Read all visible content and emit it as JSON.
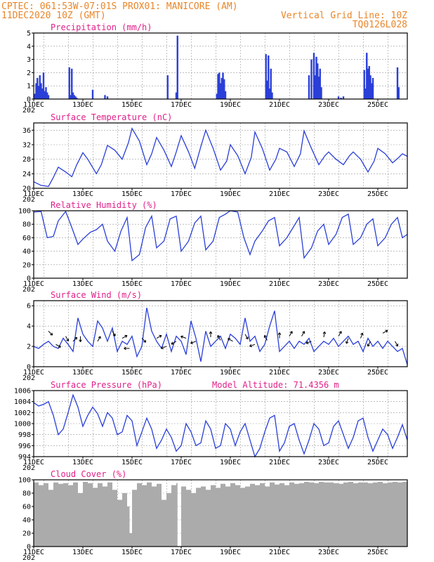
{
  "header": {
    "line1_left": "CPTEC:  061:53W-07:01S  PROX01: MANICORE (AM)",
    "line2_left": "11DEC2020 10Z (GMT)",
    "line2_right": "Vertical Grid Line: 10Z",
    "line3_right": "TQ0126L028"
  },
  "x_tick_labels": [
    "11DEC",
    "13DEC",
    "15DEC",
    "17DEC",
    "19DEC",
    "21DEC",
    "23DEC",
    "25DEC"
  ],
  "x_year_label": "202",
  "colors": {
    "series": "#2a3fd8",
    "title": "#e0208a",
    "header": "#e8862a",
    "cloud": "#ababab"
  },
  "chart_data": [
    {
      "type": "bar",
      "title": "Precipitation (mm/h)",
      "x_range_days": [
        11,
        26.2
      ],
      "ylim": [
        0,
        5
      ],
      "yticks": [
        0,
        1,
        2,
        3,
        4,
        5
      ],
      "x": [
        11.05,
        11.1,
        11.15,
        11.2,
        11.25,
        11.3,
        11.35,
        11.4,
        11.45,
        11.5,
        11.55,
        11.6,
        12.45,
        12.5,
        12.55,
        12.6,
        12.65,
        12.7,
        12.75,
        13.4,
        13.9,
        14.0,
        16.45,
        16.8,
        16.85,
        18.45,
        18.5,
        18.55,
        18.6,
        18.65,
        18.7,
        18.75,
        18.8,
        20.45,
        20.5,
        20.55,
        20.6,
        20.65,
        20.7,
        22.2,
        22.3,
        22.4,
        22.45,
        22.5,
        22.55,
        22.6,
        22.65,
        22.7,
        23.4,
        23.5,
        23.6,
        24.45,
        24.5,
        24.55,
        24.6,
        24.65,
        24.7,
        24.75,
        24.8,
        25.8,
        25.85
      ],
      "values": [
        0.4,
        1.2,
        1.6,
        1.0,
        1.8,
        1.2,
        0.8,
        2.0,
        0.6,
        0.9,
        0.5,
        0.3,
        2.4,
        0.3,
        2.3,
        0.5,
        0.3,
        0.2,
        0.1,
        0.7,
        0.3,
        0.2,
        1.8,
        0.5,
        4.8,
        0.4,
        1.9,
        2.0,
        1.2,
        1.6,
        2.0,
        1.5,
        0.6,
        3.4,
        1.4,
        3.3,
        0.8,
        2.3,
        0.5,
        1.8,
        3.0,
        3.5,
        1.8,
        3.2,
        2.7,
        1.7,
        2.3,
        0.9,
        0.2,
        0.1,
        0.2,
        2.2,
        0.8,
        3.5,
        2.3,
        2.5,
        1.8,
        1.2,
        1.6,
        2.4,
        0.9
      ]
    },
    {
      "type": "line",
      "title": "Surface Temperature (nC)",
      "x_range_days": [
        11,
        26.2
      ],
      "ylim": [
        20,
        38
      ],
      "yticks": [
        20,
        24,
        28,
        32,
        36
      ],
      "x": [
        11.0,
        11.3,
        11.6,
        11.8,
        12.0,
        12.3,
        12.55,
        12.75,
        13.0,
        13.2,
        13.55,
        13.75,
        14.0,
        14.3,
        14.6,
        14.85,
        15.0,
        15.3,
        15.6,
        15.8,
        16.0,
        16.3,
        16.6,
        16.8,
        17.0,
        17.3,
        17.55,
        17.8,
        18.0,
        18.3,
        18.6,
        18.85,
        19.0,
        19.3,
        19.6,
        19.85,
        20.0,
        20.3,
        20.6,
        20.85,
        21.0,
        21.3,
        21.6,
        21.85,
        22.0,
        22.3,
        22.6,
        22.85,
        23.0,
        23.3,
        23.6,
        23.85,
        24.0,
        24.3,
        24.6,
        24.85,
        25.0,
        25.3,
        25.6,
        25.85,
        26.0,
        26.2
      ],
      "values": [
        21.8,
        20.8,
        20.5,
        23.0,
        25.8,
        24.5,
        23.2,
        26.5,
        29.8,
        28.0,
        24.0,
        26.5,
        31.8,
        30.5,
        28.0,
        32.5,
        36.5,
        33.0,
        26.5,
        29.5,
        34.0,
        30.5,
        26.0,
        30.0,
        34.5,
        30.0,
        25.5,
        31.5,
        36.0,
        31.0,
        25.0,
        27.5,
        32.0,
        29.0,
        24.0,
        28.5,
        35.5,
        31.0,
        25.0,
        28.0,
        31.0,
        30.0,
        26.0,
        29.5,
        35.8,
        31.0,
        26.5,
        29.0,
        30.0,
        28.0,
        26.5,
        29.0,
        30.0,
        28.0,
        24.5,
        27.5,
        31.0,
        29.5,
        27.0,
        28.5,
        29.5,
        28.8
      ]
    },
    {
      "type": "line",
      "title": "Relative Humidity (%)",
      "x_range_days": [
        11,
        26.2
      ],
      "ylim": [
        0,
        100
      ],
      "yticks": [
        0,
        20,
        40,
        60,
        80,
        100
      ],
      "x": [
        11.0,
        11.3,
        11.55,
        11.8,
        12.0,
        12.3,
        12.55,
        12.8,
        13.0,
        13.3,
        13.55,
        13.8,
        14.0,
        14.3,
        14.55,
        14.8,
        15.0,
        15.3,
        15.55,
        15.8,
        16.0,
        16.3,
        16.55,
        16.8,
        17.0,
        17.3,
        17.55,
        17.8,
        18.0,
        18.3,
        18.55,
        18.8,
        19.0,
        19.3,
        19.55,
        19.8,
        20.0,
        20.3,
        20.55,
        20.8,
        21.0,
        21.3,
        21.55,
        21.8,
        22.0,
        22.3,
        22.55,
        22.8,
        23.0,
        23.3,
        23.55,
        23.8,
        24.0,
        24.3,
        24.55,
        24.8,
        25.0,
        25.3,
        25.55,
        25.8,
        26.0,
        26.2
      ],
      "values": [
        98,
        99,
        60,
        62,
        85,
        99,
        75,
        50,
        58,
        68,
        72,
        80,
        55,
        40,
        70,
        90,
        26,
        35,
        75,
        92,
        45,
        55,
        88,
        92,
        40,
        55,
        82,
        92,
        42,
        55,
        90,
        95,
        100,
        98,
        60,
        35,
        55,
        70,
        85,
        90,
        48,
        60,
        75,
        90,
        30,
        45,
        70,
        80,
        50,
        65,
        90,
        95,
        50,
        60,
        80,
        88,
        48,
        60,
        80,
        90,
        60,
        65
      ]
    },
    {
      "type": "line",
      "title": "Surface Wind (m/s)",
      "x_range_days": [
        11,
        26.2
      ],
      "ylim": [
        0,
        6.5
      ],
      "yticks": [
        0,
        2,
        4,
        6
      ],
      "x": [
        11.0,
        11.2,
        11.4,
        11.6,
        11.8,
        12.0,
        12.2,
        12.4,
        12.6,
        12.8,
        13.0,
        13.2,
        13.4,
        13.6,
        13.8,
        14.0,
        14.2,
        14.4,
        14.6,
        14.8,
        15.0,
        15.2,
        15.4,
        15.6,
        15.8,
        16.0,
        16.2,
        16.4,
        16.6,
        16.8,
        17.0,
        17.2,
        17.4,
        17.6,
        17.8,
        18.0,
        18.2,
        18.4,
        18.6,
        18.8,
        19.0,
        19.2,
        19.4,
        19.6,
        19.8,
        20.0,
        20.2,
        20.4,
        20.6,
        20.8,
        21.0,
        21.2,
        21.4,
        21.6,
        21.8,
        22.0,
        22.2,
        22.4,
        22.6,
        22.8,
        23.0,
        23.2,
        23.4,
        23.6,
        23.8,
        24.0,
        24.2,
        24.4,
        24.6,
        24.8,
        25.0,
        25.2,
        25.4,
        25.6,
        25.8,
        26.0,
        26.2
      ],
      "values": [
        2.0,
        1.8,
        2.2,
        2.5,
        2.0,
        1.8,
        2.8,
        2.2,
        1.5,
        4.8,
        3.2,
        2.5,
        2.0,
        4.5,
        3.8,
        2.5,
        3.8,
        1.5,
        2.5,
        2.2,
        3.0,
        1.0,
        2.0,
        5.8,
        3.5,
        2.5,
        1.8,
        3.2,
        1.5,
        3.0,
        2.5,
        1.2,
        4.5,
        2.8,
        0.5,
        3.5,
        2.0,
        2.5,
        3.0,
        1.8,
        3.2,
        2.8,
        2.2,
        4.8,
        2.5,
        3.0,
        1.5,
        2.2,
        4.0,
        5.5,
        1.5,
        2.0,
        2.5,
        1.8,
        2.5,
        2.2,
        2.8,
        1.5,
        2.0,
        2.5,
        2.2,
        2.8,
        2.0,
        2.5,
        3.0,
        2.2,
        2.5,
        1.5,
        2.8,
        2.0,
        2.5,
        1.8,
        2.5,
        2.0,
        1.5,
        1.8,
        0.2
      ],
      "arrows": [
        {
          "x": 11.6,
          "y": 3.5,
          "dir_deg": 315
        },
        {
          "x": 11.9,
          "y": 2.2,
          "dir_deg": 330
        },
        {
          "x": 12.3,
          "y": 3.0,
          "dir_deg": 300
        },
        {
          "x": 12.6,
          "y": 2.5,
          "dir_deg": 45
        },
        {
          "x": 12.9,
          "y": 3.0,
          "dir_deg": 270
        },
        {
          "x": 13.6,
          "y": 2.5,
          "dir_deg": 60
        },
        {
          "x": 14.2,
          "y": 3.5,
          "dir_deg": 300
        },
        {
          "x": 14.6,
          "y": 2.8,
          "dir_deg": 30
        },
        {
          "x": 14.9,
          "y": 1.8,
          "dir_deg": 180
        },
        {
          "x": 15.4,
          "y": 2.8,
          "dir_deg": 315
        },
        {
          "x": 16.0,
          "y": 2.8,
          "dir_deg": 30
        },
        {
          "x": 16.4,
          "y": 2.0,
          "dir_deg": 200
        },
        {
          "x": 16.8,
          "y": 2.5,
          "dir_deg": 210
        },
        {
          "x": 17.2,
          "y": 2.8,
          "dir_deg": 160
        },
        {
          "x": 17.6,
          "y": 2.5,
          "dir_deg": 200
        },
        {
          "x": 18.2,
          "y": 2.9,
          "dir_deg": 90
        },
        {
          "x": 18.6,
          "y": 2.6,
          "dir_deg": 120
        },
        {
          "x": 19.1,
          "y": 2.5,
          "dir_deg": 150
        },
        {
          "x": 19.6,
          "y": 3.2,
          "dir_deg": 300
        },
        {
          "x": 20.0,
          "y": 2.2,
          "dir_deg": 200
        },
        {
          "x": 20.5,
          "y": 2.6,
          "dir_deg": 120
        },
        {
          "x": 21.0,
          "y": 2.8,
          "dir_deg": 90
        },
        {
          "x": 21.4,
          "y": 3.0,
          "dir_deg": 60
        },
        {
          "x": 21.9,
          "y": 3.0,
          "dir_deg": 60
        },
        {
          "x": 22.3,
          "y": 2.5,
          "dir_deg": 200
        },
        {
          "x": 22.8,
          "y": 2.9,
          "dir_deg": 80
        },
        {
          "x": 23.4,
          "y": 3.0,
          "dir_deg": 60
        },
        {
          "x": 23.8,
          "y": 2.8,
          "dir_deg": 250
        },
        {
          "x": 24.3,
          "y": 2.8,
          "dir_deg": 70
        },
        {
          "x": 24.7,
          "y": 2.5,
          "dir_deg": 240
        },
        {
          "x": 25.2,
          "y": 3.3,
          "dir_deg": 30
        },
        {
          "x": 25.7,
          "y": 2.5,
          "dir_deg": 300
        }
      ]
    },
    {
      "type": "line",
      "title": "Surface Pressure (hPa)",
      "annotation": "Model Altitude: 71.4356 m",
      "x_range_days": [
        11,
        26.2
      ],
      "ylim": [
        994,
        1006
      ],
      "yticks": [
        994,
        996,
        998,
        1000,
        1002,
        1004,
        1006
      ],
      "x": [
        11.0,
        11.2,
        11.4,
        11.6,
        11.8,
        12.0,
        12.2,
        12.4,
        12.6,
        12.8,
        13.0,
        13.2,
        13.4,
        13.6,
        13.8,
        14.0,
        14.2,
        14.4,
        14.6,
        14.8,
        15.0,
        15.2,
        15.4,
        15.6,
        15.8,
        16.0,
        16.2,
        16.4,
        16.6,
        16.8,
        17.0,
        17.2,
        17.4,
        17.6,
        17.8,
        18.0,
        18.2,
        18.4,
        18.6,
        18.8,
        19.0,
        19.2,
        19.4,
        19.6,
        19.8,
        20.0,
        20.2,
        20.4,
        20.6,
        20.8,
        21.0,
        21.2,
        21.4,
        21.6,
        21.8,
        22.0,
        22.2,
        22.4,
        22.6,
        22.8,
        23.0,
        23.2,
        23.4,
        23.6,
        23.8,
        24.0,
        24.2,
        24.4,
        24.6,
        24.8,
        25.0,
        25.2,
        25.4,
        25.6,
        25.8,
        26.0,
        26.2
      ],
      "values": [
        1003.8,
        1003.2,
        1003.5,
        1004.0,
        1001.5,
        998.0,
        999.0,
        1002.0,
        1005.2,
        1003.0,
        999.5,
        1001.5,
        1003.0,
        1001.8,
        999.5,
        1002.0,
        1001.0,
        998.0,
        998.5,
        1001.5,
        1000.5,
        996.0,
        998.5,
        1001.0,
        999.0,
        995.5,
        997.0,
        999.0,
        997.5,
        995.0,
        996.0,
        1000.0,
        998.5,
        996.0,
        996.5,
        1000.5,
        999.0,
        995.5,
        996.0,
        1000.0,
        999.0,
        996.0,
        998.5,
        1000.0,
        997.0,
        994.0,
        995.5,
        998.5,
        1001.0,
        1001.5,
        995.0,
        996.5,
        999.5,
        1000.0,
        997.0,
        994.5,
        997.0,
        1000.0,
        999.0,
        996.0,
        996.5,
        999.5,
        1000.5,
        998.0,
        995.5,
        997.5,
        1000.5,
        1001.0,
        997.5,
        995.0,
        997.0,
        999.0,
        998.0,
        995.5,
        997.5,
        999.8,
        997.0
      ]
    },
    {
      "type": "area",
      "title": "Cloud Cover (%)",
      "x_range_days": [
        11,
        26.2
      ],
      "ylim": [
        0,
        100
      ],
      "yticks": [
        0,
        20,
        40,
        60,
        80,
        100
      ],
      "x": [
        11.0,
        11.2,
        11.4,
        11.6,
        11.8,
        12.0,
        12.2,
        12.4,
        12.6,
        12.8,
        13.0,
        13.2,
        13.4,
        13.6,
        13.8,
        14.0,
        14.2,
        14.4,
        14.6,
        14.8,
        14.9,
        15.0,
        15.2,
        15.4,
        15.6,
        15.8,
        16.0,
        16.2,
        16.4,
        16.6,
        16.8,
        16.85,
        17.0,
        17.2,
        17.4,
        17.6,
        17.8,
        18.0,
        18.2,
        18.4,
        18.6,
        18.8,
        19.0,
        19.2,
        19.4,
        19.6,
        19.8,
        20.0,
        20.2,
        20.4,
        20.6,
        20.8,
        21.0,
        21.2,
        21.4,
        21.6,
        21.8,
        22.0,
        22.2,
        22.4,
        22.6,
        22.8,
        23.0,
        23.2,
        23.4,
        23.6,
        23.8,
        24.0,
        24.2,
        24.4,
        24.6,
        24.8,
        25.0,
        25.2,
        25.4,
        25.6,
        25.8,
        26.0,
        26.2
      ],
      "values": [
        96,
        92,
        95,
        85,
        96,
        94,
        95,
        92,
        96,
        80,
        97,
        95,
        88,
        95,
        90,
        96,
        85,
        70,
        80,
        60,
        20,
        85,
        95,
        92,
        96,
        90,
        94,
        70,
        80,
        92,
        95,
        0,
        90,
        85,
        80,
        88,
        90,
        85,
        92,
        88,
        94,
        90,
        95,
        92,
        88,
        90,
        94,
        92,
        95,
        90,
        96,
        93,
        95,
        92,
        96,
        94,
        95,
        97,
        96,
        95,
        97,
        96,
        96,
        95,
        94,
        96,
        97,
        95,
        96,
        96,
        95,
        96,
        97,
        95,
        96,
        97,
        96,
        97,
        96
      ]
    }
  ]
}
